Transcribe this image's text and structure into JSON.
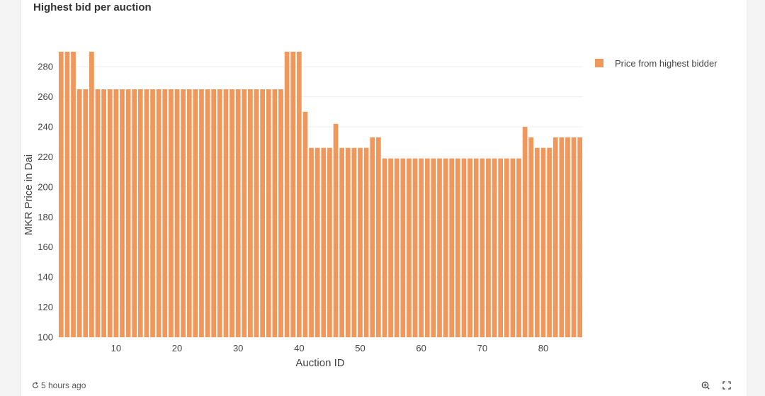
{
  "card": {
    "title": "Highest bid per auction",
    "updated": "5 hours ago"
  },
  "icons": {
    "refresh": "refresh-icon",
    "zoom": "zoom-in-icon",
    "expand": "expand-icon"
  },
  "colors": {
    "bar": "#f0975c",
    "grid": "#eeeeee",
    "axis_text": "#444444"
  },
  "chart_data": {
    "type": "bar",
    "xlabel": "Auction ID",
    "ylabel": "MKR Price in Dai",
    "ylim": [
      100,
      290
    ],
    "xlim": [
      0.5,
      86.5
    ],
    "yticks": [
      100,
      120,
      140,
      160,
      180,
      200,
      220,
      240,
      260,
      280
    ],
    "xticks": [
      10,
      20,
      30,
      40,
      50,
      60,
      70,
      80
    ],
    "grid": true,
    "legend_position": "top-right",
    "series": [
      {
        "name": "Price from highest bidder",
        "x": [
          1,
          2,
          3,
          4,
          5,
          6,
          7,
          8,
          9,
          10,
          11,
          12,
          13,
          14,
          15,
          16,
          17,
          18,
          19,
          20,
          21,
          22,
          23,
          24,
          25,
          26,
          27,
          28,
          29,
          30,
          31,
          32,
          33,
          34,
          35,
          36,
          37,
          38,
          39,
          40,
          41,
          42,
          43,
          44,
          45,
          46,
          47,
          48,
          49,
          50,
          51,
          52,
          53,
          54,
          55,
          56,
          57,
          58,
          59,
          60,
          61,
          62,
          63,
          64,
          65,
          66,
          67,
          68,
          69,
          70,
          71,
          72,
          73,
          74,
          75,
          76,
          77,
          78,
          79,
          80,
          81,
          82,
          83,
          84,
          85,
          86
        ],
        "values": [
          290,
          290,
          290,
          265,
          265,
          290,
          265,
          265,
          265,
          265,
          265,
          265,
          265,
          265,
          265,
          265,
          265,
          265,
          265,
          265,
          265,
          265,
          265,
          265,
          265,
          265,
          265,
          265,
          265,
          265,
          265,
          265,
          265,
          265,
          265,
          265,
          265,
          290,
          290,
          290,
          250,
          226,
          226,
          226,
          226,
          242,
          226,
          226,
          226,
          226,
          226,
          233,
          233,
          219,
          219,
          219,
          219,
          219,
          219,
          219,
          219,
          219,
          219,
          219,
          219,
          219,
          219,
          219,
          219,
          219,
          219,
          219,
          219,
          219,
          219,
          219,
          240,
          233,
          226,
          226,
          226,
          233,
          233,
          233,
          233,
          233
        ]
      }
    ]
  }
}
